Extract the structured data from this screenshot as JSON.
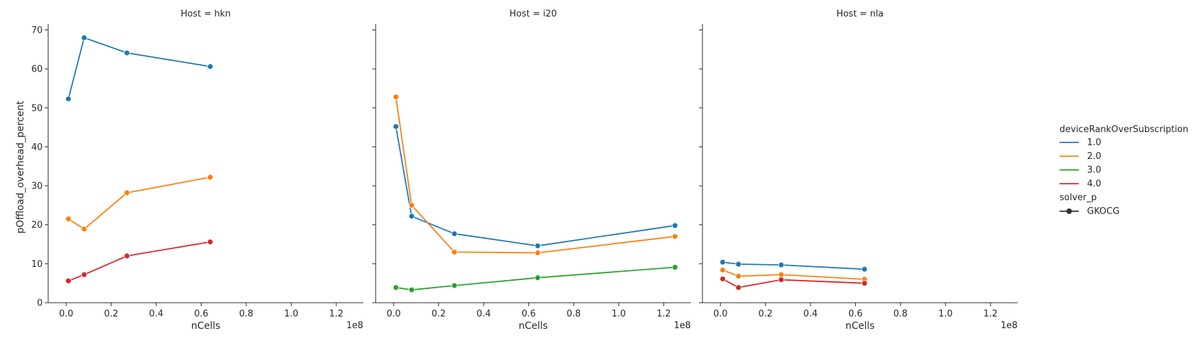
{
  "chart_data": {
    "type": "line",
    "x_label": "nCells",
    "y_label": "pOffload_overhead_percent",
    "x_offset_text": "1e8",
    "x_scale_factor": 100000000.0,
    "xlim": [
      -0.08,
      1.32
    ],
    "ylim": [
      0,
      71.5
    ],
    "x_ticks": [
      0.0,
      0.2,
      0.4,
      0.6,
      0.8,
      1.0,
      1.2
    ],
    "x_tick_labels": [
      "0.0",
      "0.2",
      "0.4",
      "0.6",
      "0.8",
      "1.0",
      "1.2"
    ],
    "y_ticks": [
      0,
      10,
      20,
      30,
      40,
      50,
      60,
      70
    ],
    "y_tick_labels": [
      "0",
      "10",
      "20",
      "30",
      "40",
      "50",
      "60",
      "70"
    ],
    "series_colors": {
      "1.0": "#1f77b4",
      "2.0": "#ff7f0e",
      "3.0": "#2ca02c",
      "4.0": "#d62728"
    },
    "legend": {
      "hue_title": "deviceRankOverSubscription",
      "hue_entries": [
        "1.0",
        "2.0",
        "3.0",
        "4.0"
      ],
      "style_title": "solver_p",
      "style_entries": [
        "GKOCG"
      ],
      "placement": "right"
    },
    "panels": [
      {
        "title": "Host = hkn",
        "series": [
          {
            "hue": "1.0",
            "x": [
              0.01,
              0.08,
              0.27,
              0.64
            ],
            "y": [
              52.3,
              68.0,
              64.1,
              60.6
            ]
          },
          {
            "hue": "2.0",
            "x": [
              0.01,
              0.08,
              0.27,
              0.64
            ],
            "y": [
              21.5,
              18.9,
              28.2,
              32.2
            ]
          },
          {
            "hue": "4.0",
            "x": [
              0.01,
              0.08,
              0.27,
              0.64
            ],
            "y": [
              5.6,
              7.2,
              12.0,
              15.6
            ]
          }
        ]
      },
      {
        "title": "Host = i20",
        "series": [
          {
            "hue": "1.0",
            "x": [
              0.01,
              0.08,
              0.27,
              0.64,
              1.25
            ],
            "y": [
              45.2,
              22.2,
              17.7,
              14.6,
              19.8
            ]
          },
          {
            "hue": "2.0",
            "x": [
              0.01,
              0.08,
              0.27,
              0.64,
              1.25
            ],
            "y": [
              52.8,
              25.0,
              13.0,
              12.8,
              17.0
            ]
          },
          {
            "hue": "3.0",
            "x": [
              0.01,
              0.08,
              0.27,
              0.64,
              1.25
            ],
            "y": [
              3.9,
              3.3,
              4.4,
              6.4,
              9.1
            ]
          }
        ]
      },
      {
        "title": "Host = nla",
        "series": [
          {
            "hue": "1.0",
            "x": [
              0.01,
              0.08,
              0.27,
              0.64
            ],
            "y": [
              10.4,
              9.9,
              9.7,
              8.6
            ]
          },
          {
            "hue": "2.0",
            "x": [
              0.01,
              0.08,
              0.27,
              0.64
            ],
            "y": [
              8.4,
              6.8,
              7.2,
              6.0
            ]
          },
          {
            "hue": "4.0",
            "x": [
              0.01,
              0.08,
              0.27,
              0.64
            ],
            "y": [
              6.1,
              3.9,
              5.9,
              5.0
            ]
          }
        ]
      }
    ]
  }
}
